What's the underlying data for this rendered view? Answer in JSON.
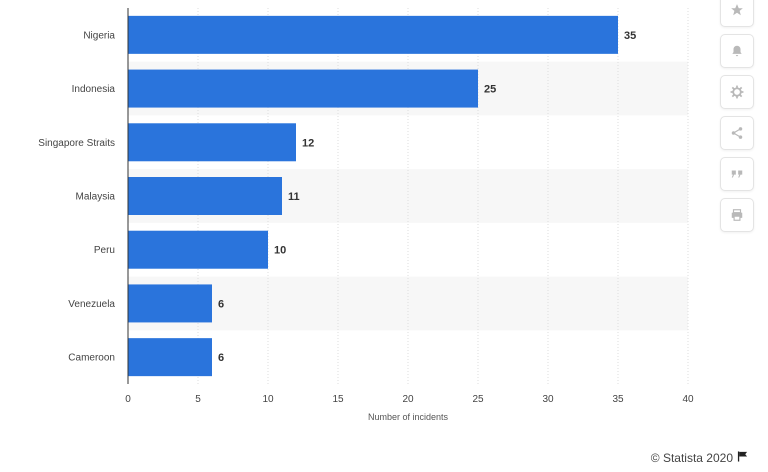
{
  "chart_data": {
    "type": "bar",
    "orientation": "horizontal",
    "categories": [
      "Nigeria",
      "Indonesia",
      "Singapore Straits",
      "Malaysia",
      "Peru",
      "Venezuela",
      "Cameroon"
    ],
    "values": [
      35,
      25,
      12,
      11,
      10,
      6,
      6
    ],
    "xlabel": "Number of incidents",
    "ylabel": "",
    "xlim": [
      0,
      40
    ],
    "xticks": [
      0,
      5,
      10,
      15,
      20,
      25,
      30,
      35,
      40
    ],
    "data_labels": true,
    "grid": "vertical",
    "bar_color": "#2a74dc",
    "label_color": "#333333"
  },
  "sidebar": {
    "icons": [
      "star-icon",
      "bell-icon",
      "gear-icon",
      "share-icon",
      "quote-icon",
      "print-icon"
    ]
  },
  "credit": {
    "text": "© Statista 2020",
    "icon": "flag-icon"
  }
}
